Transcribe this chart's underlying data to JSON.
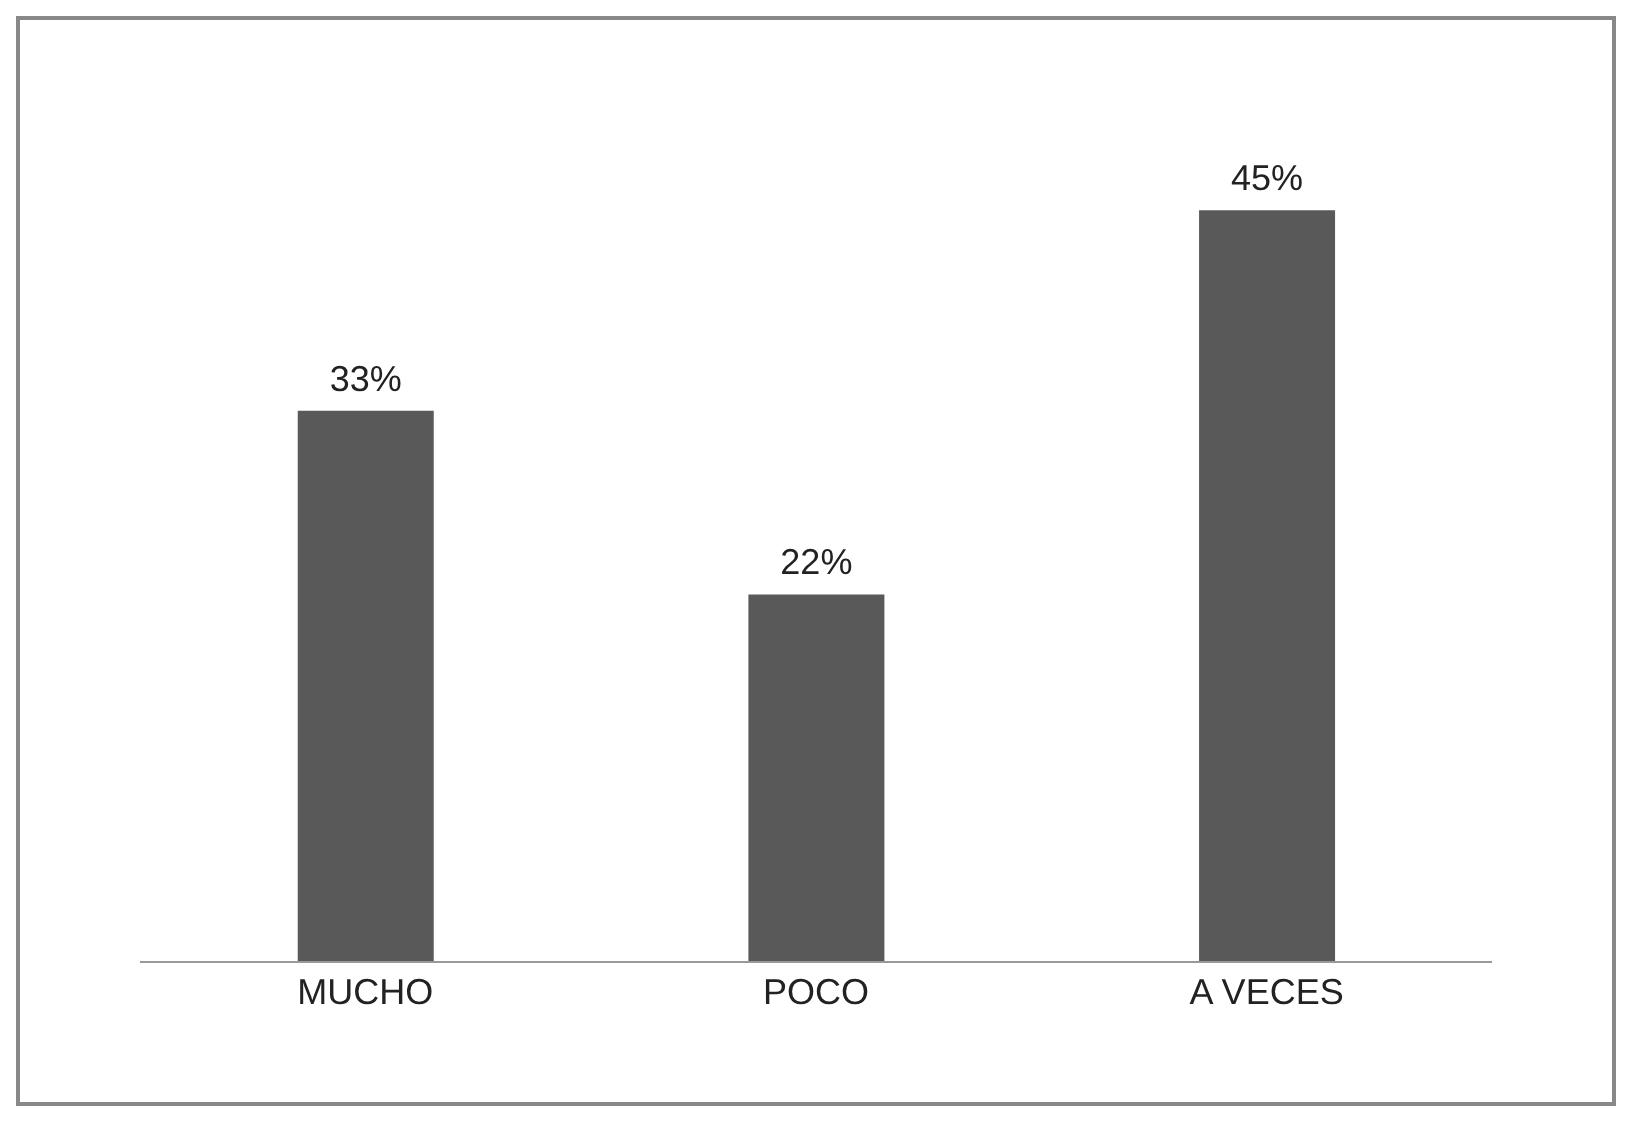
{
  "chart_data": {
    "type": "bar",
    "categories": [
      "MUCHO",
      "POCO",
      "A VECES"
    ],
    "values": [
      33,
      22,
      45
    ],
    "color": "#595959",
    "value_labels": [
      "33%",
      "22%",
      "45%"
    ]
  }
}
